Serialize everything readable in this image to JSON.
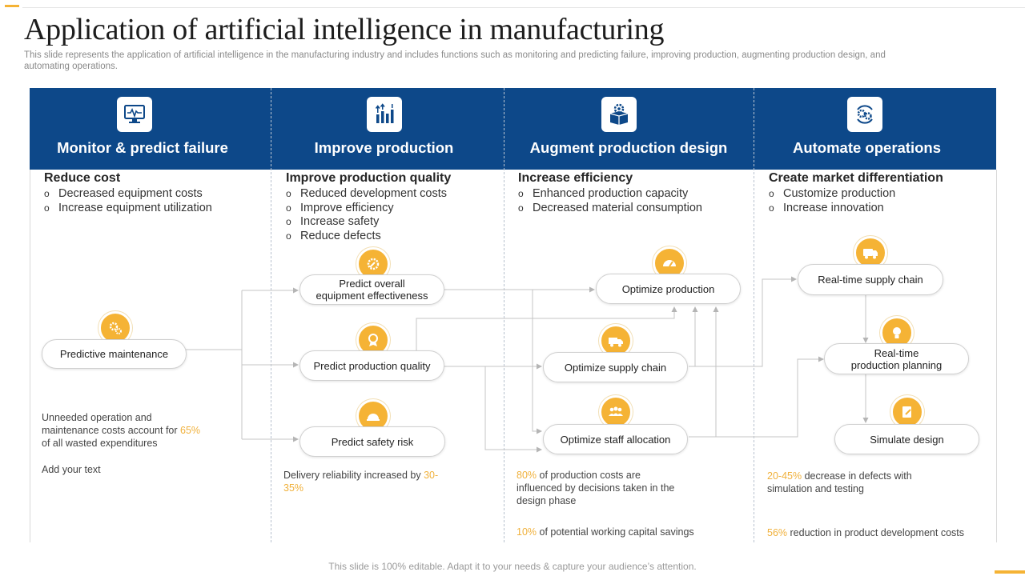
{
  "title": "Application of artificial intelligence in manufacturing",
  "subtitle": "This slide represents the application of artificial intelligence in the manufacturing industry and includes functions such as monitoring and predicting failure, improving production, augmenting production design, and automating operations.",
  "columns": [
    {
      "title": "Monitor & predict failure",
      "icon": "monitor-icon",
      "heading": "Reduce cost",
      "bullets": [
        "Decreased equipment costs",
        "Increase equipment utilization"
      ]
    },
    {
      "title": "Improve production",
      "icon": "bar-chart-arrows-icon",
      "heading": "Improve production quality",
      "bullets": [
        "Reduced development costs",
        "Improve efficiency",
        "Increase safety",
        "Reduce defects"
      ]
    },
    {
      "title": "Augment production design",
      "icon": "box-gear-icon",
      "heading": "Increase efficiency",
      "bullets": [
        "Enhanced production capacity",
        "Decreased material consumption"
      ]
    },
    {
      "title": "Automate operations",
      "icon": "gears-cycle-icon",
      "heading": "Create market differentiation",
      "bullets": [
        "Customize production",
        "Increase innovation"
      ]
    }
  ],
  "nodes": {
    "predictive_maintenance": "Predictive  maintenance",
    "predict_oee_line1": "Predict overall",
    "predict_oee_line2": "equipment effectiveness",
    "predict_quality": "Predict production quality",
    "predict_safety": "Predict safety risk",
    "optimize_production": "Optimize production",
    "optimize_supply": "Optimize supply chain",
    "optimize_staff": "Optimize staff allocation",
    "realtime_supply": "Real-time supply chain",
    "realtime_planning_line1": "Real-time",
    "realtime_planning_line2": "production planning",
    "simulate_design": "Simulate design"
  },
  "notes": {
    "col1_a_line1": "Unneeded  operation  and",
    "col1_a_line2_pre": "maintenance  costs account for ",
    "col1_a_highlight": "65%",
    "col1_a_line3": "of all wasted expenditures",
    "col1_b": "Add your text",
    "col2_pre": "Delivery  reliability  increased  by ",
    "col2_highlight_a": "30-",
    "col2_highlight_b": "35%",
    "col3_a_highlight": "80%",
    "col3_a_line1": "  of production costs are",
    "col3_a_line2": "influenced  by decisions taken in the",
    "col3_a_line3": "design phase",
    "col3_b_highlight": "10%",
    "col3_b_text": "  of potential working  capital savings",
    "col4_a_highlight": "20-45%",
    "col4_a_line1": "  decrease  in defects with",
    "col4_a_line2": "simulation and testing",
    "col4_b_highlight": "56%",
    "col4_b_text": "  reduction  in product development  costs"
  },
  "footer": "This slide is 100% editable. Adapt it to your needs & capture your audience’s attention.",
  "colors": {
    "band": "#0d4889",
    "accent": "#f5b335",
    "highlight": "#f0b13c"
  }
}
